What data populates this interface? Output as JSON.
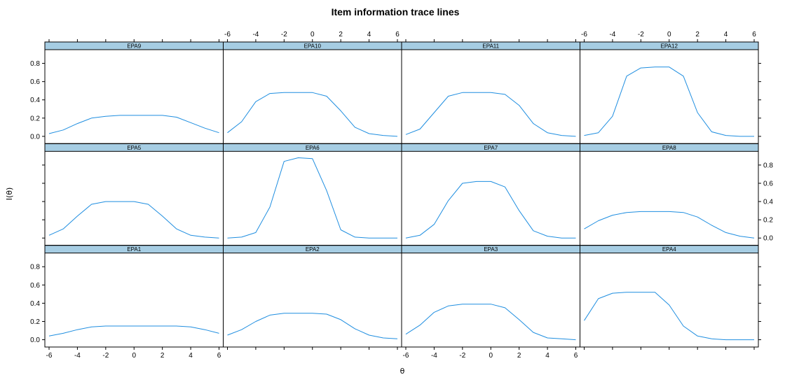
{
  "chart_data": {
    "type": "line",
    "title": "Item information trace lines",
    "xlabel": "θ",
    "ylabel": "I(θ)",
    "xlim": [
      -6,
      6
    ],
    "ylim": [
      -0.08,
      0.95
    ],
    "x_ticks": [
      -6,
      -4,
      -2,
      0,
      2,
      4,
      6
    ],
    "y_ticks": [
      0.0,
      0.2,
      0.4,
      0.6,
      0.8
    ],
    "x_tick_labels": [
      "-6",
      "-4",
      "-2",
      "0",
      "2",
      "4",
      "6"
    ],
    "y_tick_labels": [
      "0.0",
      "0.2",
      "0.4",
      "0.6",
      "0.8"
    ],
    "grid": false,
    "colors": {
      "line": "#1f8ee0",
      "strip": "#a6cde3",
      "frame": "#000000"
    },
    "x": [
      -6,
      -5,
      -4,
      -3,
      -2,
      -1,
      0,
      1,
      2,
      3,
      4,
      5,
      6
    ],
    "panels": [
      {
        "name": "EPA9",
        "row": 0,
        "col": 0,
        "values": [
          0.03,
          0.07,
          0.14,
          0.2,
          0.22,
          0.23,
          0.23,
          0.23,
          0.23,
          0.21,
          0.15,
          0.09,
          0.04
        ]
      },
      {
        "name": "EPA10",
        "row": 0,
        "col": 1,
        "values": [
          0.04,
          0.16,
          0.38,
          0.47,
          0.48,
          0.48,
          0.48,
          0.44,
          0.28,
          0.1,
          0.03,
          0.01,
          0.0
        ]
      },
      {
        "name": "EPA11",
        "row": 0,
        "col": 2,
        "values": [
          0.02,
          0.08,
          0.26,
          0.44,
          0.48,
          0.48,
          0.48,
          0.46,
          0.34,
          0.14,
          0.04,
          0.01,
          0.0
        ]
      },
      {
        "name": "EPA12",
        "row": 0,
        "col": 3,
        "values": [
          0.01,
          0.04,
          0.22,
          0.66,
          0.75,
          0.76,
          0.76,
          0.66,
          0.26,
          0.05,
          0.01,
          0.0,
          0.0
        ]
      },
      {
        "name": "EPA5",
        "row": 1,
        "col": 0,
        "values": [
          0.03,
          0.1,
          0.24,
          0.37,
          0.4,
          0.4,
          0.4,
          0.37,
          0.24,
          0.1,
          0.03,
          0.01,
          0.0
        ]
      },
      {
        "name": "EPA6",
        "row": 1,
        "col": 1,
        "values": [
          0.0,
          0.01,
          0.06,
          0.34,
          0.84,
          0.88,
          0.87,
          0.52,
          0.09,
          0.01,
          0.0,
          0.0,
          0.0
        ]
      },
      {
        "name": "EPA7",
        "row": 1,
        "col": 2,
        "values": [
          0.0,
          0.03,
          0.15,
          0.41,
          0.6,
          0.62,
          0.62,
          0.56,
          0.3,
          0.08,
          0.02,
          0.0,
          0.0
        ]
      },
      {
        "name": "EPA8",
        "row": 1,
        "col": 3,
        "values": [
          0.1,
          0.19,
          0.25,
          0.28,
          0.29,
          0.29,
          0.29,
          0.28,
          0.23,
          0.14,
          0.06,
          0.02,
          0.0
        ]
      },
      {
        "name": "EPA1",
        "row": 2,
        "col": 0,
        "values": [
          0.04,
          0.07,
          0.11,
          0.14,
          0.15,
          0.15,
          0.15,
          0.15,
          0.15,
          0.15,
          0.14,
          0.11,
          0.07
        ]
      },
      {
        "name": "EPA2",
        "row": 2,
        "col": 1,
        "values": [
          0.05,
          0.11,
          0.2,
          0.27,
          0.29,
          0.29,
          0.29,
          0.28,
          0.22,
          0.12,
          0.05,
          0.02,
          0.01
        ]
      },
      {
        "name": "EPA3",
        "row": 2,
        "col": 2,
        "values": [
          0.06,
          0.16,
          0.3,
          0.37,
          0.39,
          0.39,
          0.39,
          0.35,
          0.22,
          0.08,
          0.02,
          0.01,
          0.0
        ]
      },
      {
        "name": "EPA4",
        "row": 2,
        "col": 3,
        "values": [
          0.21,
          0.45,
          0.51,
          0.52,
          0.52,
          0.52,
          0.38,
          0.15,
          0.04,
          0.01,
          0.0,
          0.0,
          0.0
        ]
      }
    ]
  }
}
